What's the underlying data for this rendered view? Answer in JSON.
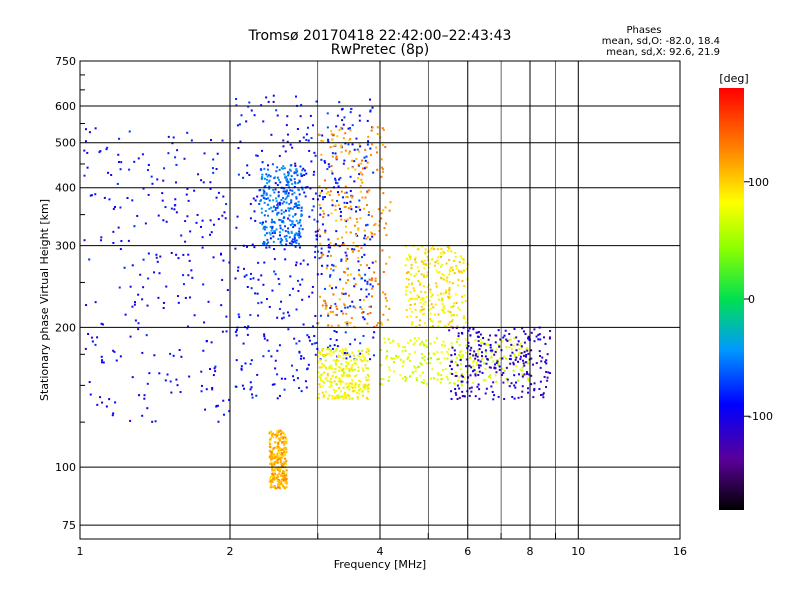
{
  "chart_data": {
    "type": "scatter",
    "title_line1": "Tromsø 20170418 22:42:00–22:43:43",
    "title_line2": "RwPretec (8p)",
    "xlabel": "Frequency [MHz]",
    "ylabel": "Stationary phase Virtual Height [km]",
    "x_scale": "log",
    "y_scale": "log",
    "xlim": [
      1,
      16
    ],
    "ylim": [
      70,
      750
    ],
    "x_ticks": [
      1,
      2,
      4,
      6,
      8,
      10,
      16
    ],
    "x_minor_ticks": [
      3,
      5,
      7,
      9
    ],
    "y_ticks": [
      75,
      100,
      200,
      300,
      400,
      500,
      600,
      750
    ],
    "y_minor_ticks": [
      125,
      150,
      175,
      250,
      350,
      450,
      550,
      650,
      700
    ],
    "grid": true,
    "phases": {
      "heading": "Phases",
      "line_o": "mean, sd,O: -82.0, 18.4",
      "line_x": "mean, sd,X: 92.6, 21.9"
    },
    "colorbar": {
      "label": "[deg]",
      "range": [
        -180,
        180
      ],
      "ticks": [
        100,
        0,
        -100
      ]
    },
    "series": [
      {
        "traces": [
          {
            "f0": 1.02,
            "f1": 2.0,
            "h0": 125,
            "h1": 540,
            "phase": -95
          },
          {
            "f0": 2.05,
            "f1": 2.9,
            "h0": 140,
            "h1": 640,
            "phase": -90
          },
          {
            "f0": 2.3,
            "f1": 2.8,
            "h0": 300,
            "h1": 450,
            "phase": -55
          },
          {
            "f0": 2.9,
            "f1": 3.9,
            "h0": 170,
            "h1": 620,
            "phase": -85
          },
          {
            "f0": 3.0,
            "f1": 4.2,
            "h0": 200,
            "h1": 540,
            "phase": 120
          },
          {
            "f0": 3.0,
            "f1": 3.8,
            "h0": 140,
            "h1": 180,
            "phase": 80
          },
          {
            "f0": 4.0,
            "f1": 8.0,
            "h0": 150,
            "h1": 190,
            "phase": 70
          },
          {
            "f0": 4.5,
            "f1": 6.0,
            "h0": 200,
            "h1": 300,
            "phase": 90
          },
          {
            "f0": 5.5,
            "f1": 8.8,
            "h0": 140,
            "h1": 200,
            "phase": -110
          },
          {
            "f0": 2.4,
            "f1": 2.6,
            "h0": 90,
            "h1": 120,
            "phase": 110
          }
        ]
      }
    ]
  }
}
